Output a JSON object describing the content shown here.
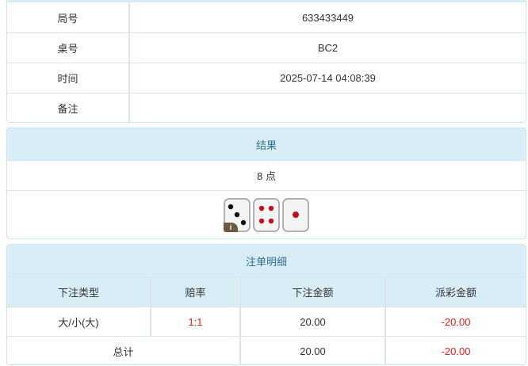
{
  "info": {
    "rows": [
      {
        "label": "局号",
        "value": "633433449"
      },
      {
        "label": "桌号",
        "value": "BC2"
      },
      {
        "label": "时间",
        "value": "2025-07-14 04:08:39"
      },
      {
        "label": "备注",
        "value": ""
      }
    ]
  },
  "result": {
    "title": "结果",
    "points": "8 点",
    "dice": [
      3,
      4,
      1
    ],
    "info_badge": "i"
  },
  "bets": {
    "title": "注单明细",
    "columns": [
      "下注类型",
      "赔率",
      "下注金额",
      "派彩金额"
    ],
    "rows": [
      {
        "type": "大/小(大)",
        "odds": "1:1",
        "amount": "20.00",
        "payout": "-20.00"
      }
    ],
    "total": {
      "label": "总计",
      "amount": "20.00",
      "payout": "-20.00"
    },
    "colors": {
      "negative": "#e02020",
      "header_bg": "#d9edf7",
      "header_text": "#31708f"
    }
  }
}
